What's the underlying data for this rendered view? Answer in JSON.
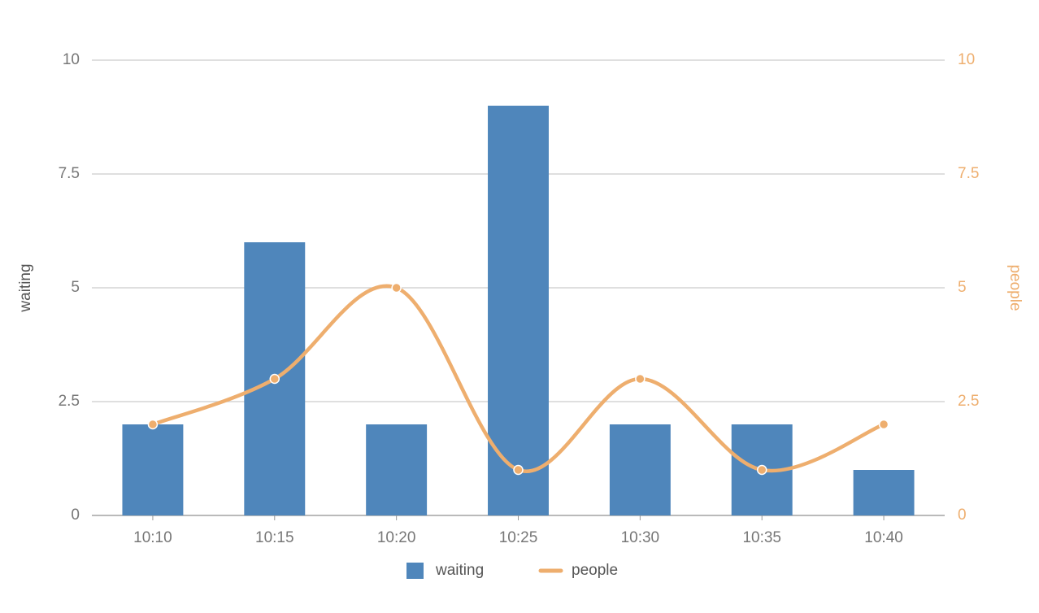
{
  "chart_data": {
    "type": "bar-line",
    "categories": [
      "10:10",
      "10:15",
      "10:20",
      "10:25",
      "10:30",
      "10:35",
      "10:40"
    ],
    "series": [
      {
        "name": "waiting",
        "type": "bar",
        "color": "#4f86bb",
        "values": [
          2,
          6,
          2,
          9,
          2,
          2,
          1
        ]
      },
      {
        "name": "people",
        "type": "line",
        "axis": "y2",
        "smooth": true,
        "color": "#eeae6e",
        "values": [
          2,
          3,
          5,
          1,
          3,
          1,
          2
        ]
      }
    ],
    "ylabel": "waiting",
    "y2label": "people",
    "ylim": [
      0,
      10
    ],
    "yticks": [
      0,
      2.5,
      5,
      7.5,
      10
    ],
    "y2lim": [
      0,
      10
    ],
    "y2ticks": [
      0,
      2.5,
      5,
      7.5,
      10
    ],
    "grid": true,
    "legend": "bottom"
  }
}
